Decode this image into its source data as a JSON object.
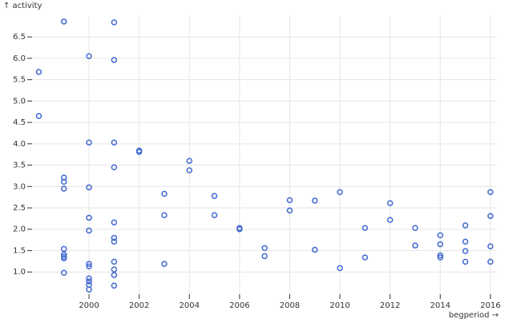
{
  "chart_data": {
    "type": "scatter",
    "y_label": "↑ activity",
    "x_label": "begperiod →",
    "color": "#4269d0",
    "grid": true,
    "xlim": [
      1997.73,
      2016.26
    ],
    "ylim": [
      0.48,
      6.99
    ],
    "xticks": [
      2000,
      2002,
      2004,
      2006,
      2008,
      2010,
      2012,
      2014,
      2016
    ],
    "yticks": [
      {
        "value": 1,
        "label": "1.0"
      },
      {
        "value": 1.5,
        "label": "1.5"
      },
      {
        "value": 2,
        "label": "2.0"
      },
      {
        "value": 2.5,
        "label": "2.5"
      },
      {
        "value": 3,
        "label": "3.0"
      },
      {
        "value": 3.5,
        "label": "3.5"
      },
      {
        "value": 4,
        "label": "4.0"
      },
      {
        "value": 4.5,
        "label": "4.5"
      },
      {
        "value": 5,
        "label": "5.0"
      },
      {
        "value": 5.5,
        "label": "5.5"
      },
      {
        "value": 6,
        "label": "6.0"
      },
      {
        "value": 6.5,
        "label": "6.5"
      }
    ],
    "x": [
      1998,
      1998,
      1999,
      1999,
      1999,
      1999,
      1999,
      1999,
      1999,
      1999,
      1999,
      2000,
      2000,
      2000,
      2000,
      2000,
      2000,
      2000,
      2000,
      2000,
      2000,
      2000,
      2001,
      2001,
      2001,
      2001,
      2001,
      2001,
      2001,
      2001,
      2001,
      2001,
      2001,
      2002,
      2002,
      2003,
      2003,
      2003,
      2004,
      2004,
      2005,
      2005,
      2006,
      2006,
      2007,
      2007,
      2008,
      2008,
      2009,
      2009,
      2010,
      2010,
      2011,
      2011,
      2012,
      2012,
      2013,
      2013,
      2014,
      2014,
      2014,
      2014,
      2015,
      2015,
      2015,
      2015,
      2016,
      2016,
      2016,
      2016
    ],
    "values": [
      5.68,
      4.65,
      6.86,
      3.21,
      3.11,
      2.95,
      1.54,
      1.41,
      1.36,
      1.32,
      0.98,
      6.05,
      4.03,
      2.98,
      2.27,
      1.97,
      1.19,
      1.13,
      0.85,
      0.78,
      0.7,
      0.59,
      6.84,
      5.96,
      4.03,
      3.45,
      2.16,
      1.8,
      1.71,
      1.24,
      1.06,
      0.93,
      0.68,
      3.84,
      3.81,
      2.83,
      2.33,
      1.19,
      3.6,
      3.38,
      2.78,
      2.33,
      2.03,
      2.0,
      1.56,
      1.37,
      2.68,
      2.44,
      2.67,
      1.52,
      2.87,
      1.09,
      2.03,
      1.34,
      2.61,
      2.22,
      2.03,
      1.62,
      1.86,
      1.65,
      1.39,
      1.34,
      2.09,
      1.71,
      1.49,
      1.24,
      2.87,
      2.31,
      1.6,
      1.24
    ]
  }
}
